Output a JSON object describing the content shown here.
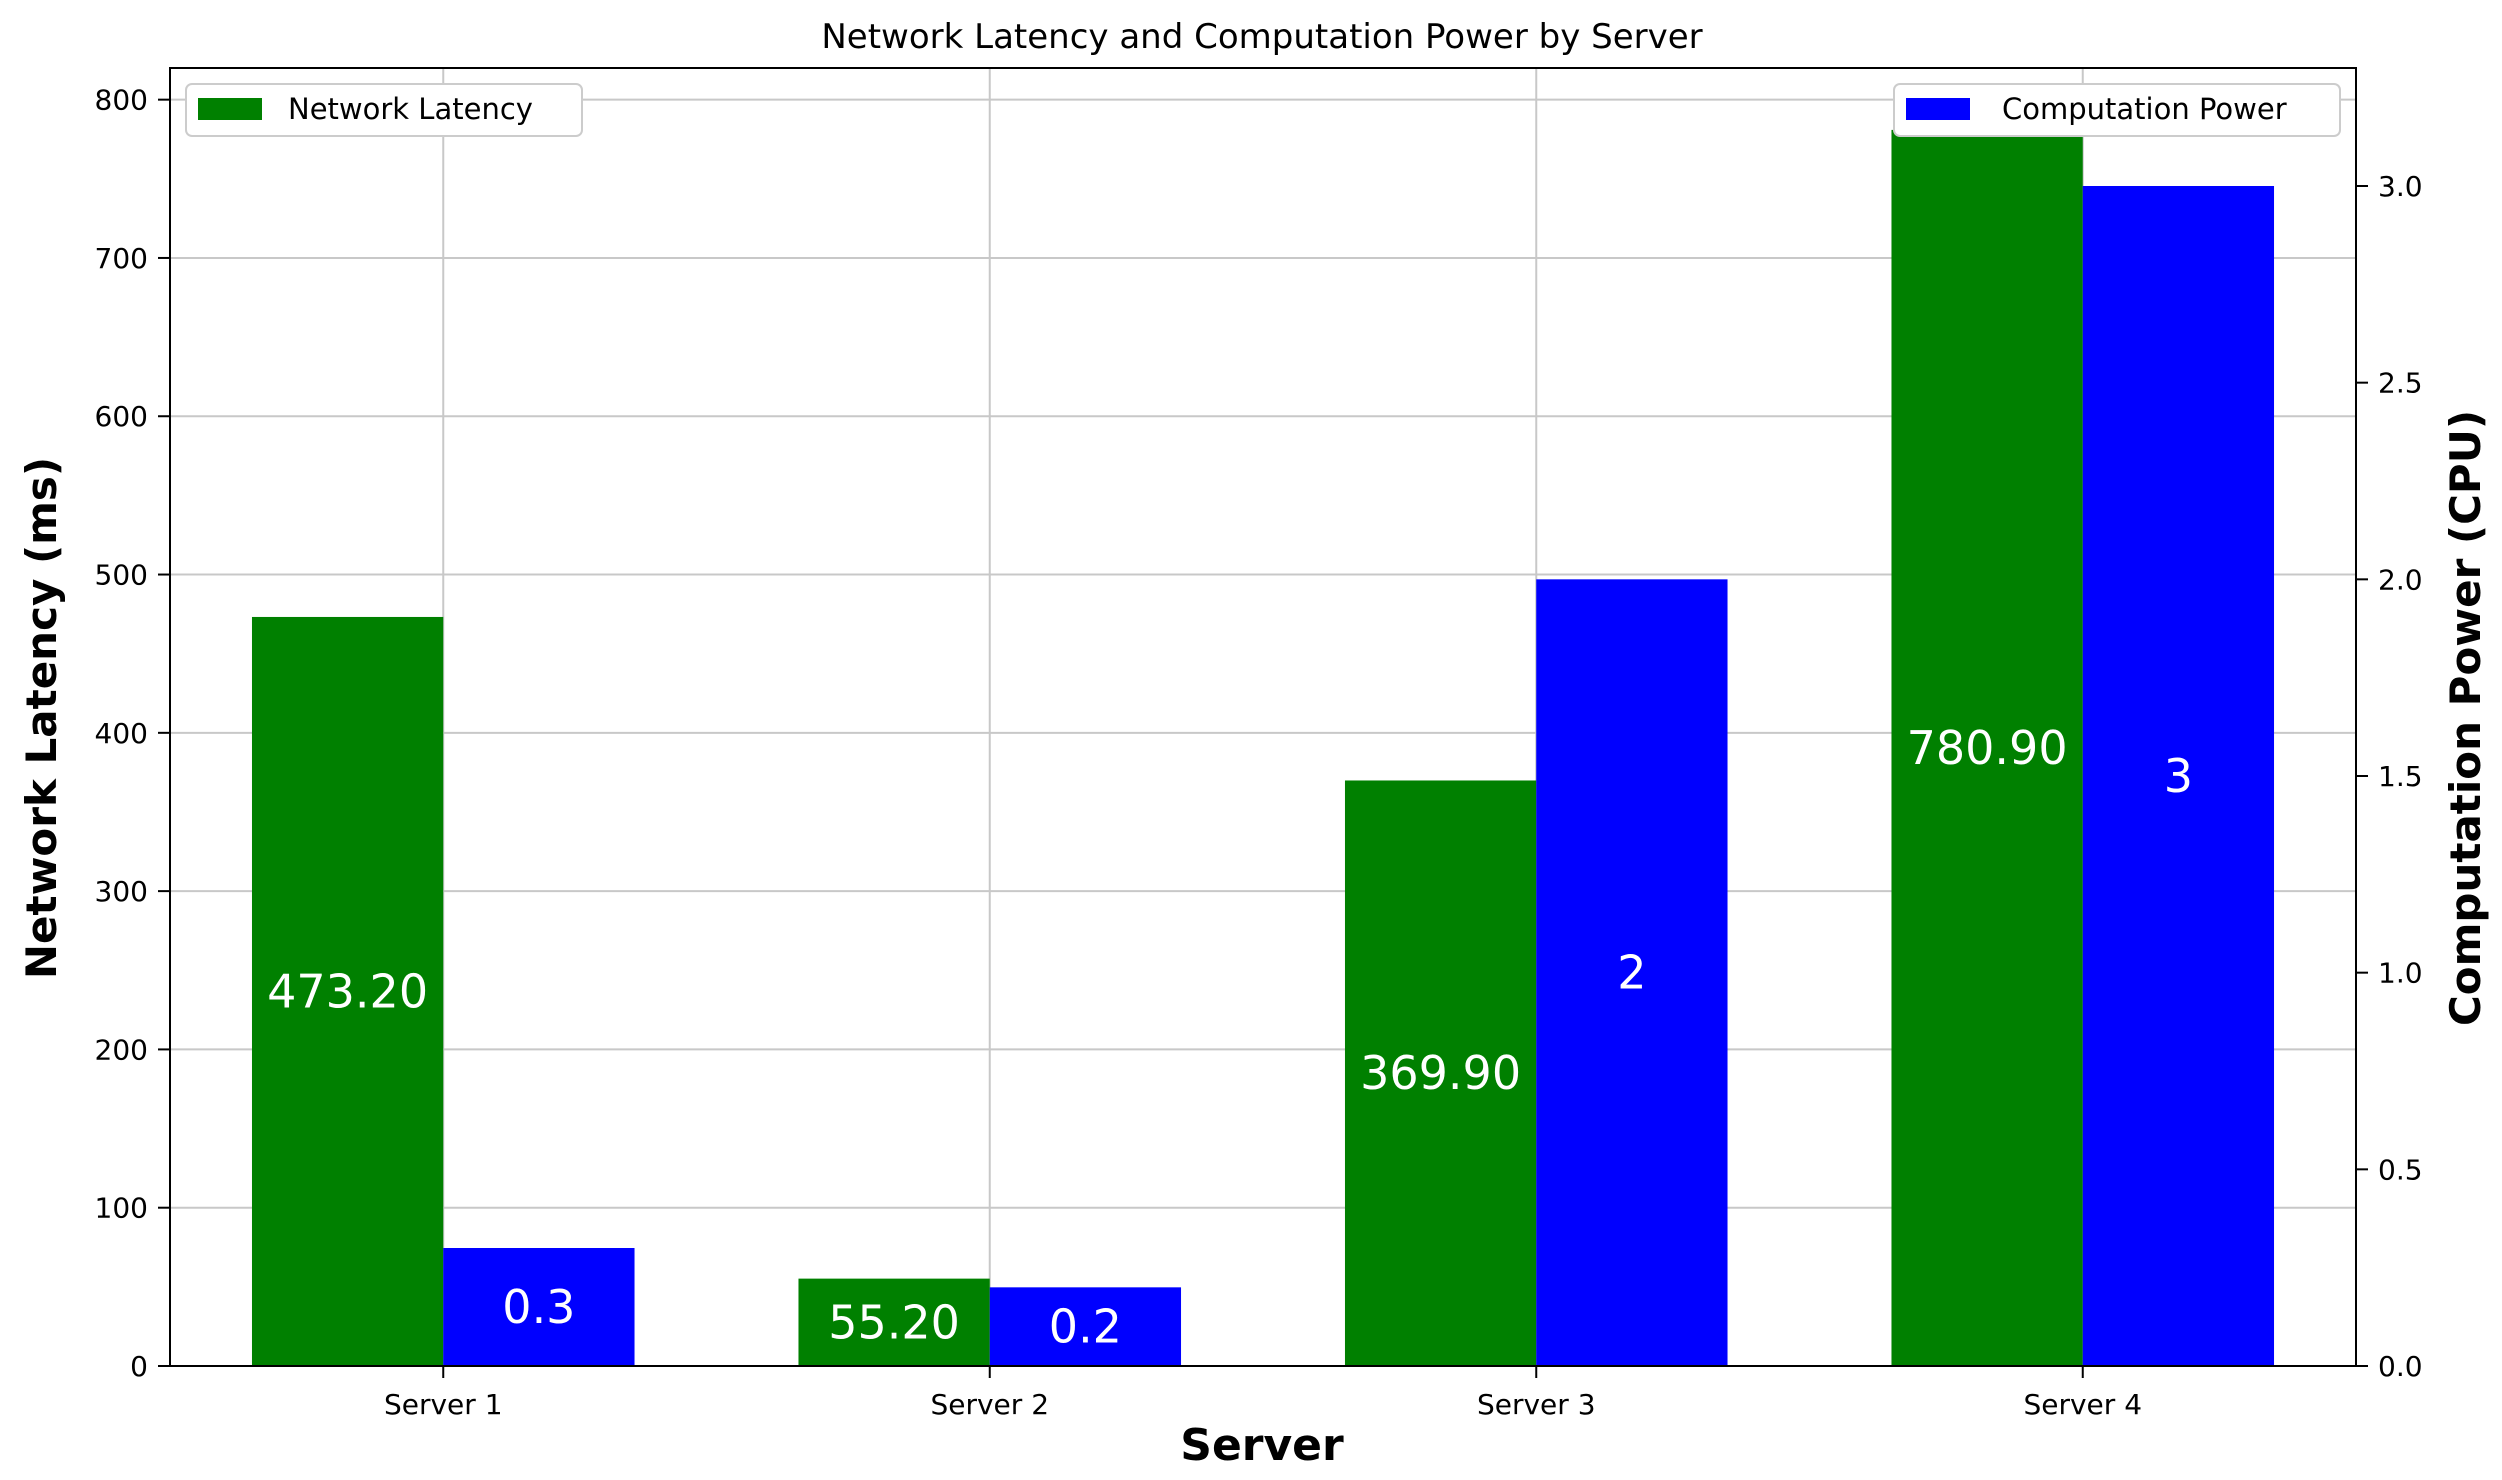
{
  "chart_data": {
    "type": "bar",
    "title": "Network Latency and Computation Power by Server",
    "xlabel": "Server",
    "ylabel_left": "Network Latency (ms)",
    "ylabel_right": "Computation Power (CPU)",
    "categories": [
      "Server 1",
      "Server 2",
      "Server 3",
      "Server 4"
    ],
    "ylim_left": [
      0,
      820
    ],
    "ylim_right": [
      0,
      3.3
    ],
    "yticks_left": [
      0,
      100,
      200,
      300,
      400,
      500,
      600,
      700,
      800
    ],
    "yticks_right": [
      0.0,
      0.5,
      1.0,
      1.5,
      2.0,
      2.5,
      3.0
    ],
    "yticks_right_labels": [
      "0.0",
      "0.5",
      "1.0",
      "1.5",
      "2.0",
      "2.5",
      "3.0"
    ],
    "grid": true,
    "series": [
      {
        "name": "Network Latency",
        "axis": "left",
        "color": "#008000",
        "values": [
          473.2,
          55.2,
          369.9,
          780.9
        ],
        "data_labels": [
          "473.20",
          "55.20",
          "369.90",
          "780.90"
        ],
        "legend_position": "top-left"
      },
      {
        "name": "Computation Power",
        "axis": "right",
        "color": "#0000ff",
        "values": [
          0.3,
          0.2,
          2,
          3
        ],
        "data_labels": [
          "0.3",
          "0.2",
          "2",
          "3"
        ],
        "legend_position": "top-right"
      }
    ]
  }
}
